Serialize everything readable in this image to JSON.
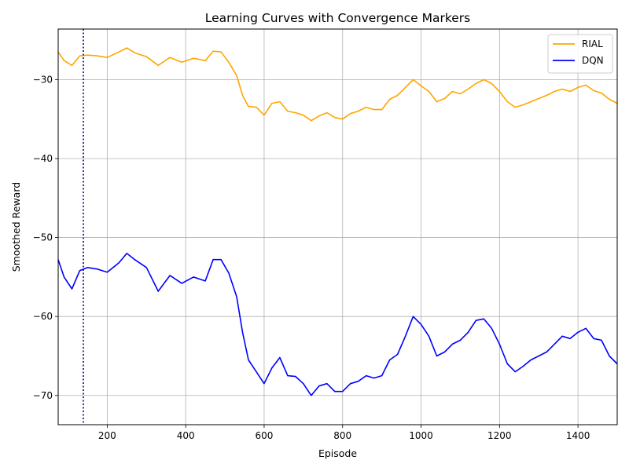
{
  "chart_data": {
    "type": "line",
    "title": "Learning Curves with Convergence Markers",
    "xlabel": "Episode",
    "ylabel": "Smoothed Reward",
    "xlim": [
      75,
      1500
    ],
    "ylim": [
      -73.7,
      -23.6
    ],
    "x_ticks": [
      200,
      400,
      600,
      800,
      1000,
      1200,
      1400
    ],
    "y_ticks": [
      -70,
      -60,
      -50,
      -40,
      -30
    ],
    "grid": true,
    "legend_position": "upper right",
    "convergence_marker": {
      "x": 75,
      "color": "#00008b",
      "style": "dotted"
    },
    "series": [
      {
        "name": "RIAL",
        "color": "#ffa500",
        "x": [
          75,
          90,
          110,
          130,
          150,
          175,
          200,
          230,
          250,
          270,
          300,
          330,
          360,
          390,
          420,
          450,
          470,
          490,
          510,
          530,
          545,
          560,
          580,
          600,
          620,
          640,
          660,
          680,
          700,
          720,
          740,
          760,
          780,
          800,
          820,
          840,
          860,
          880,
          900,
          920,
          940,
          960,
          980,
          1000,
          1020,
          1040,
          1060,
          1080,
          1100,
          1120,
          1140,
          1160,
          1180,
          1200,
          1220,
          1240,
          1260,
          1280,
          1300,
          1320,
          1340,
          1360,
          1380,
          1400,
          1420,
          1440,
          1460,
          1480,
          1500
        ],
        "y": [
          -26.5,
          -27.6,
          -28.2,
          -27.0,
          -26.9,
          -27.0,
          -27.2,
          -26.5,
          -26.0,
          -26.6,
          -27.1,
          -28.2,
          -27.2,
          -27.8,
          -27.3,
          -27.6,
          -26.4,
          -26.5,
          -27.8,
          -29.5,
          -32.0,
          -33.4,
          -33.5,
          -34.5,
          -33.0,
          -32.8,
          -34.0,
          -34.2,
          -34.5,
          -35.2,
          -34.6,
          -34.2,
          -34.8,
          -35.0,
          -34.3,
          -34.0,
          -33.5,
          -33.8,
          -33.8,
          -32.5,
          -32.0,
          -31.0,
          -30.0,
          -30.8,
          -31.5,
          -32.8,
          -32.4,
          -31.5,
          -31.8,
          -31.2,
          -30.5,
          -30.0,
          -30.5,
          -31.5,
          -32.8,
          -33.5,
          -33.2,
          -32.8,
          -32.4,
          -32.0,
          -31.5,
          -31.2,
          -31.5,
          -31.0,
          -30.7,
          -31.4,
          -31.7,
          -32.5,
          -33.0
        ]
      },
      {
        "name": "DQN",
        "color": "#0000ff",
        "x": [
          75,
          90,
          110,
          130,
          150,
          175,
          200,
          230,
          250,
          270,
          300,
          330,
          360,
          390,
          420,
          450,
          470,
          490,
          510,
          530,
          545,
          560,
          580,
          600,
          620,
          640,
          660,
          680,
          700,
          720,
          740,
          760,
          780,
          800,
          820,
          840,
          860,
          880,
          900,
          920,
          940,
          960,
          980,
          1000,
          1020,
          1040,
          1060,
          1080,
          1100,
          1120,
          1140,
          1160,
          1180,
          1200,
          1220,
          1240,
          1260,
          1280,
          1300,
          1320,
          1340,
          1360,
          1380,
          1400,
          1420,
          1440,
          1460,
          1480,
          1500
        ],
        "y": [
          -52.8,
          -55.0,
          -56.5,
          -54.2,
          -53.8,
          -54.0,
          -54.4,
          -53.2,
          -52.0,
          -52.8,
          -53.8,
          -56.8,
          -54.8,
          -55.8,
          -55.0,
          -55.5,
          -52.8,
          -52.8,
          -54.5,
          -57.5,
          -62.0,
          -65.5,
          -67.0,
          -68.5,
          -66.5,
          -65.2,
          -67.5,
          -67.6,
          -68.5,
          -70.0,
          -68.8,
          -68.5,
          -69.5,
          -69.5,
          -68.5,
          -68.2,
          -67.5,
          -67.8,
          -67.5,
          -65.5,
          -64.8,
          -62.5,
          -60.0,
          -61.0,
          -62.5,
          -65.0,
          -64.5,
          -63.5,
          -63.0,
          -62.0,
          -60.5,
          -60.3,
          -61.5,
          -63.5,
          -66.0,
          -67.0,
          -66.3,
          -65.5,
          -65.0,
          -64.5,
          -63.5,
          -62.5,
          -62.8,
          -62.0,
          -61.5,
          -62.8,
          -63.0,
          -65.0,
          -66.0
        ]
      }
    ]
  }
}
